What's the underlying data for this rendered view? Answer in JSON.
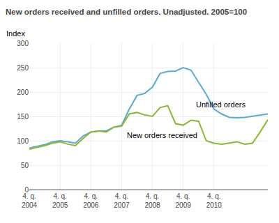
{
  "chart_data": {
    "type": "line",
    "title": "New orders received and unfilled orders. Unadjusted. 2005=100",
    "ylabel": "Index",
    "categories": [
      "4. q.\n2004",
      null,
      null,
      null,
      "4. q.\n2005",
      null,
      null,
      null,
      "4. q.\n2006",
      null,
      null,
      null,
      "4. q.\n2007",
      null,
      null,
      null,
      "4. q.\n2008",
      null,
      null,
      null,
      "4. q.\n2009",
      null,
      null,
      null,
      "4. q.\n2010",
      null,
      null,
      null,
      null,
      null,
      null,
      null
    ],
    "series": [
      {
        "name": "Unfilled orders",
        "color": "#5baad6",
        "values": [
          85,
          88,
          92,
          98,
          100,
          98,
          95,
          110,
          118,
          120,
          120,
          128,
          132,
          165,
          193,
          197,
          210,
          238,
          242,
          243,
          250,
          245,
          220,
          195,
          165,
          155,
          148,
          147,
          148,
          150,
          153,
          155
        ]
      },
      {
        "name": "New orders received",
        "color": "#8ab833",
        "values": [
          83,
          86,
          90,
          95,
          98,
          93,
          90,
          105,
          118,
          120,
          118,
          128,
          130,
          155,
          158,
          153,
          150,
          168,
          172,
          135,
          132,
          142,
          140,
          100,
          95,
          93,
          95,
          98,
          93,
          95,
          118,
          143
        ]
      }
    ],
    "annotations": [
      {
        "text": "Unfilled orders",
        "x": 21.5,
        "y": 175
      },
      {
        "text": "New orders received",
        "x": 12.5,
        "y": 112
      }
    ],
    "ylim": [
      0,
      300
    ],
    "yticks": [
      0,
      50,
      100,
      150,
      200,
      250,
      300
    ],
    "grid": true
  }
}
